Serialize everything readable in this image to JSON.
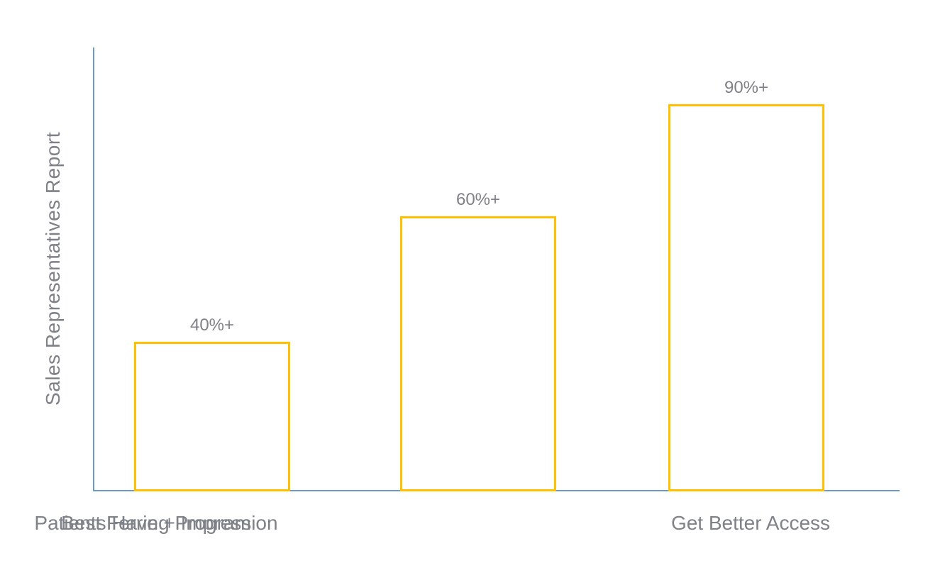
{
  "chart_data": {
    "type": "bar",
    "title": "",
    "xlabel": "",
    "ylabel": "Sales Representatives Report",
    "categories": [
      "Get Better Access",
      "Best Ferring Program",
      "Patients Have + Impression"
    ],
    "values": [
      40,
      60,
      90
    ],
    "data_labels": [
      "40%+",
      "60%+",
      "90%+"
    ],
    "bar_height_fraction_of_plot": [
      0.338,
      0.622,
      0.875
    ],
    "ylim": [
      0,
      100
    ],
    "y_tick_labels_visible": false,
    "grid": false,
    "legend": false,
    "bar_fill_color": "#FFFFFF",
    "bar_border_color": "#FFC000",
    "axis_line_color": "#699BC3",
    "text_color": "#7E8187"
  }
}
